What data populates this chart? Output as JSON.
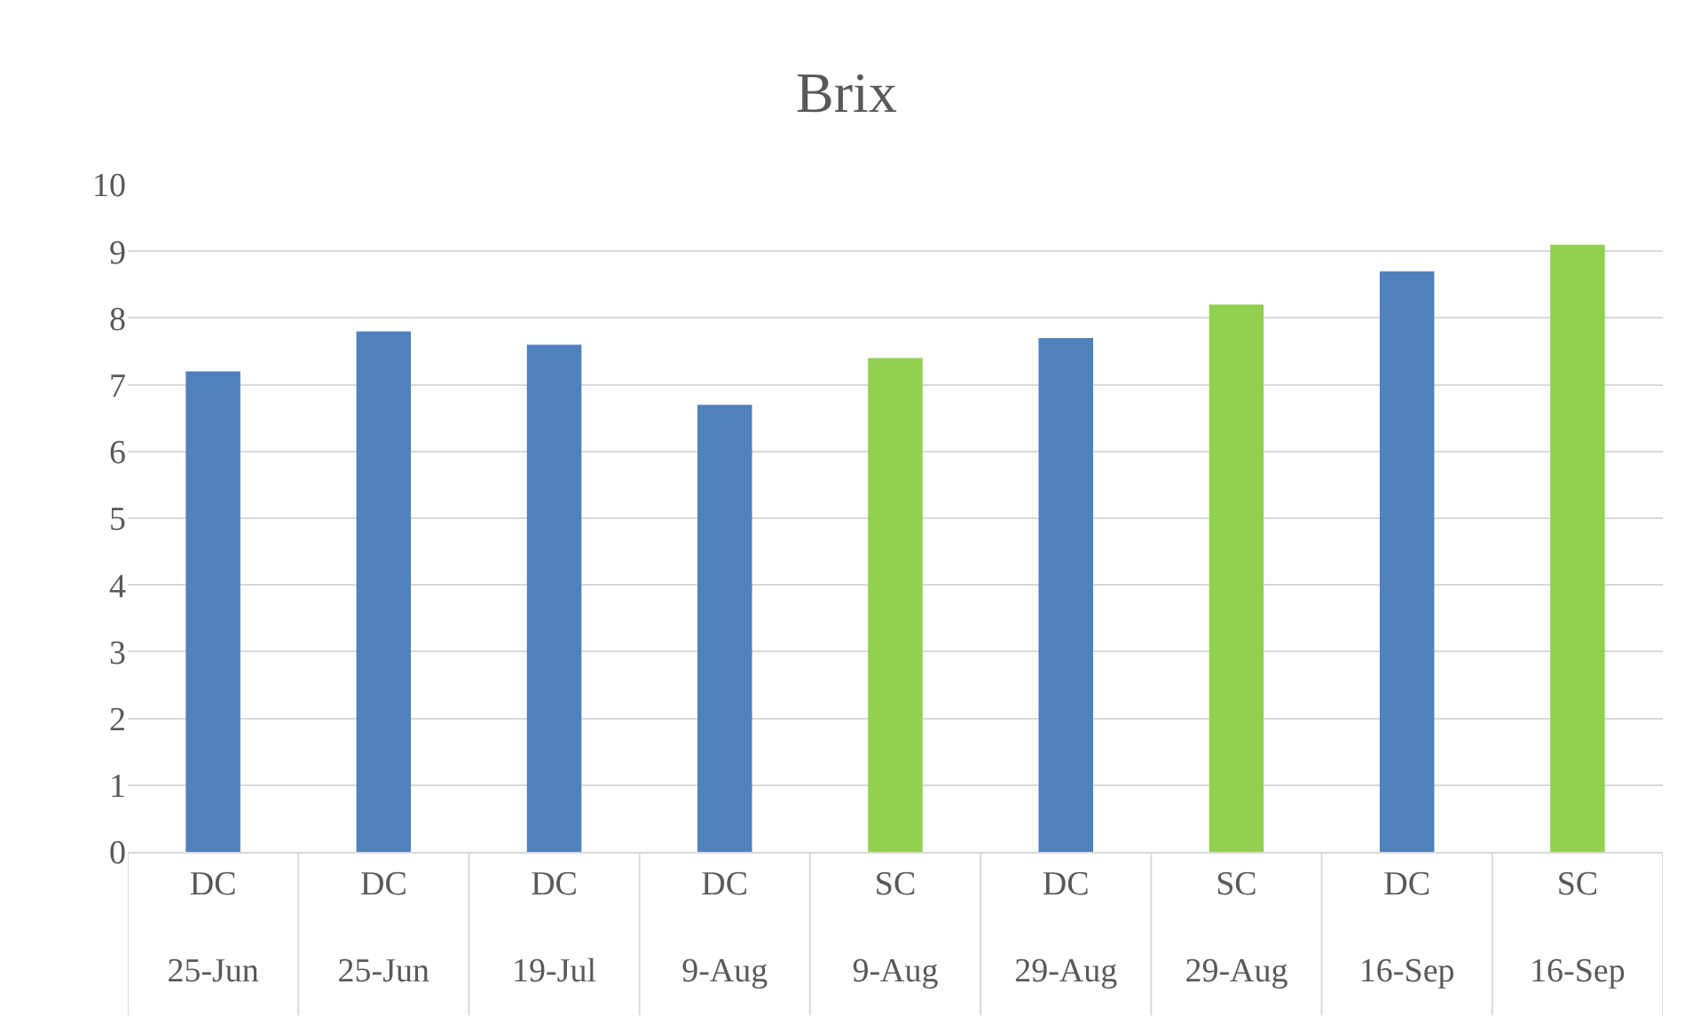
{
  "chart_data": {
    "type": "bar",
    "title": "Brix",
    "categories": [
      "DC\n25-Jun",
      "DC\n25-Jun",
      "DC\n19-Jul",
      "DC\n9-Aug",
      "SC\n9-Aug",
      "DC\n29-Aug",
      "SC\n29-Aug",
      "DC\n16-Sep",
      "SC\n16-Sep"
    ],
    "values": [
      7.2,
      7.8,
      7.6,
      6.7,
      7.4,
      7.7,
      8.2,
      8.7,
      9.1
    ],
    "colors": [
      "#4f81bd",
      "#4f81bd",
      "#4f81bd",
      "#4f81bd",
      "#92d050",
      "#4f81bd",
      "#92d050",
      "#4f81bd",
      "#92d050"
    ],
    "ylim": [
      0,
      10
    ],
    "yticks": [
      0,
      1,
      2,
      3,
      4,
      5,
      6,
      7,
      8,
      9,
      10
    ],
    "grid": "y"
  }
}
